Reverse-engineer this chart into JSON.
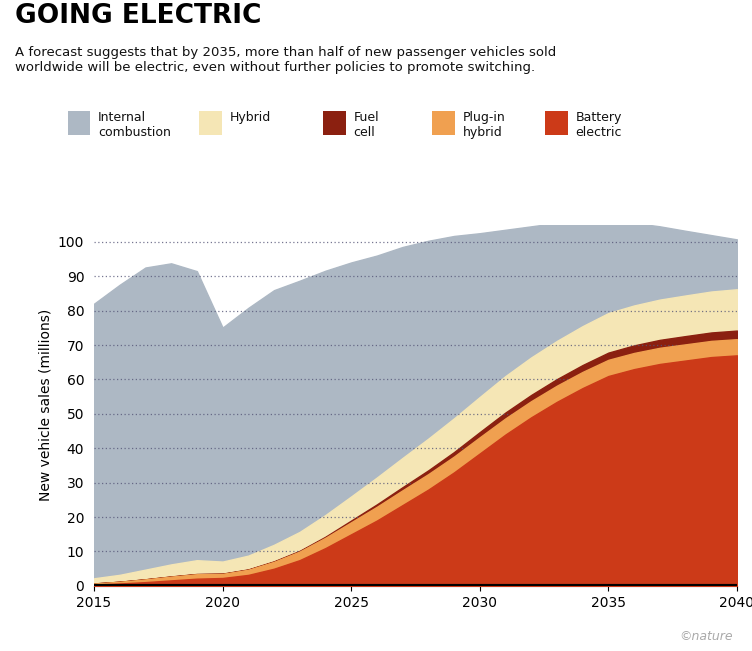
{
  "title": "GOING ELECTRIC",
  "subtitle": "A forecast suggests that by 2035, more than half of new passenger vehicles sold\nworldwide will be electric, even without further policies to promote switching.",
  "ylabel": "New vehicle sales (millions)",
  "years": [
    2015,
    2016,
    2017,
    2018,
    2019,
    2020,
    2021,
    2022,
    2023,
    2024,
    2025,
    2026,
    2027,
    2028,
    2029,
    2030,
    2031,
    2032,
    2033,
    2034,
    2035,
    2036,
    2037,
    2038,
    2039,
    2040
  ],
  "battery_electric": [
    0.4,
    0.7,
    1.1,
    1.6,
    2.1,
    2.3,
    3.2,
    5.0,
    7.5,
    11.0,
    15.0,
    19.0,
    23.5,
    28.0,
    33.0,
    38.5,
    44.0,
    49.0,
    53.5,
    57.5,
    61.0,
    63.0,
    64.5,
    65.5,
    66.5,
    67.0
  ],
  "plugin_hybrid": [
    0.3,
    0.5,
    0.8,
    1.1,
    1.3,
    1.2,
    1.5,
    2.0,
    2.5,
    3.0,
    3.5,
    4.0,
    4.3,
    4.5,
    4.6,
    4.7,
    4.7,
    4.7,
    4.7,
    4.7,
    4.7,
    4.7,
    4.7,
    4.7,
    4.7,
    4.7
  ],
  "fuel_cell": [
    0.01,
    0.02,
    0.03,
    0.05,
    0.07,
    0.07,
    0.1,
    0.15,
    0.2,
    0.3,
    0.5,
    0.7,
    0.9,
    1.1,
    1.3,
    1.5,
    1.7,
    1.8,
    1.9,
    2.0,
    2.1,
    2.2,
    2.3,
    2.4,
    2.45,
    2.5
  ],
  "hybrid": [
    1.5,
    2.0,
    2.8,
    3.5,
    4.0,
    3.5,
    4.0,
    4.8,
    5.5,
    6.3,
    7.0,
    7.8,
    8.5,
    9.2,
    9.8,
    10.2,
    10.6,
    10.9,
    11.1,
    11.3,
    11.5,
    11.6,
    11.7,
    11.8,
    11.9,
    12.0
  ],
  "internal_combustion": [
    79.8,
    84.3,
    87.8,
    87.5,
    84.0,
    68.0,
    72.0,
    74.0,
    73.0,
    71.0,
    68.0,
    64.5,
    61.3,
    57.5,
    53.0,
    47.6,
    42.5,
    38.1,
    34.3,
    30.8,
    27.2,
    24.0,
    21.3,
    18.8,
    16.4,
    14.5
  ],
  "color_ice": "#adb8c4",
  "color_hybrid": "#f5e6b5",
  "color_fcev": "#8b2010",
  "color_phev": "#f0a050",
  "color_bev": "#cc3a18",
  "ylim": [
    0,
    105
  ],
  "yticks": [
    0,
    10,
    20,
    30,
    40,
    50,
    60,
    70,
    80,
    90,
    100
  ],
  "xlim": [
    2015,
    2040
  ],
  "xticks": [
    2015,
    2020,
    2025,
    2030,
    2035,
    2040
  ],
  "copyright_text": "©nature"
}
